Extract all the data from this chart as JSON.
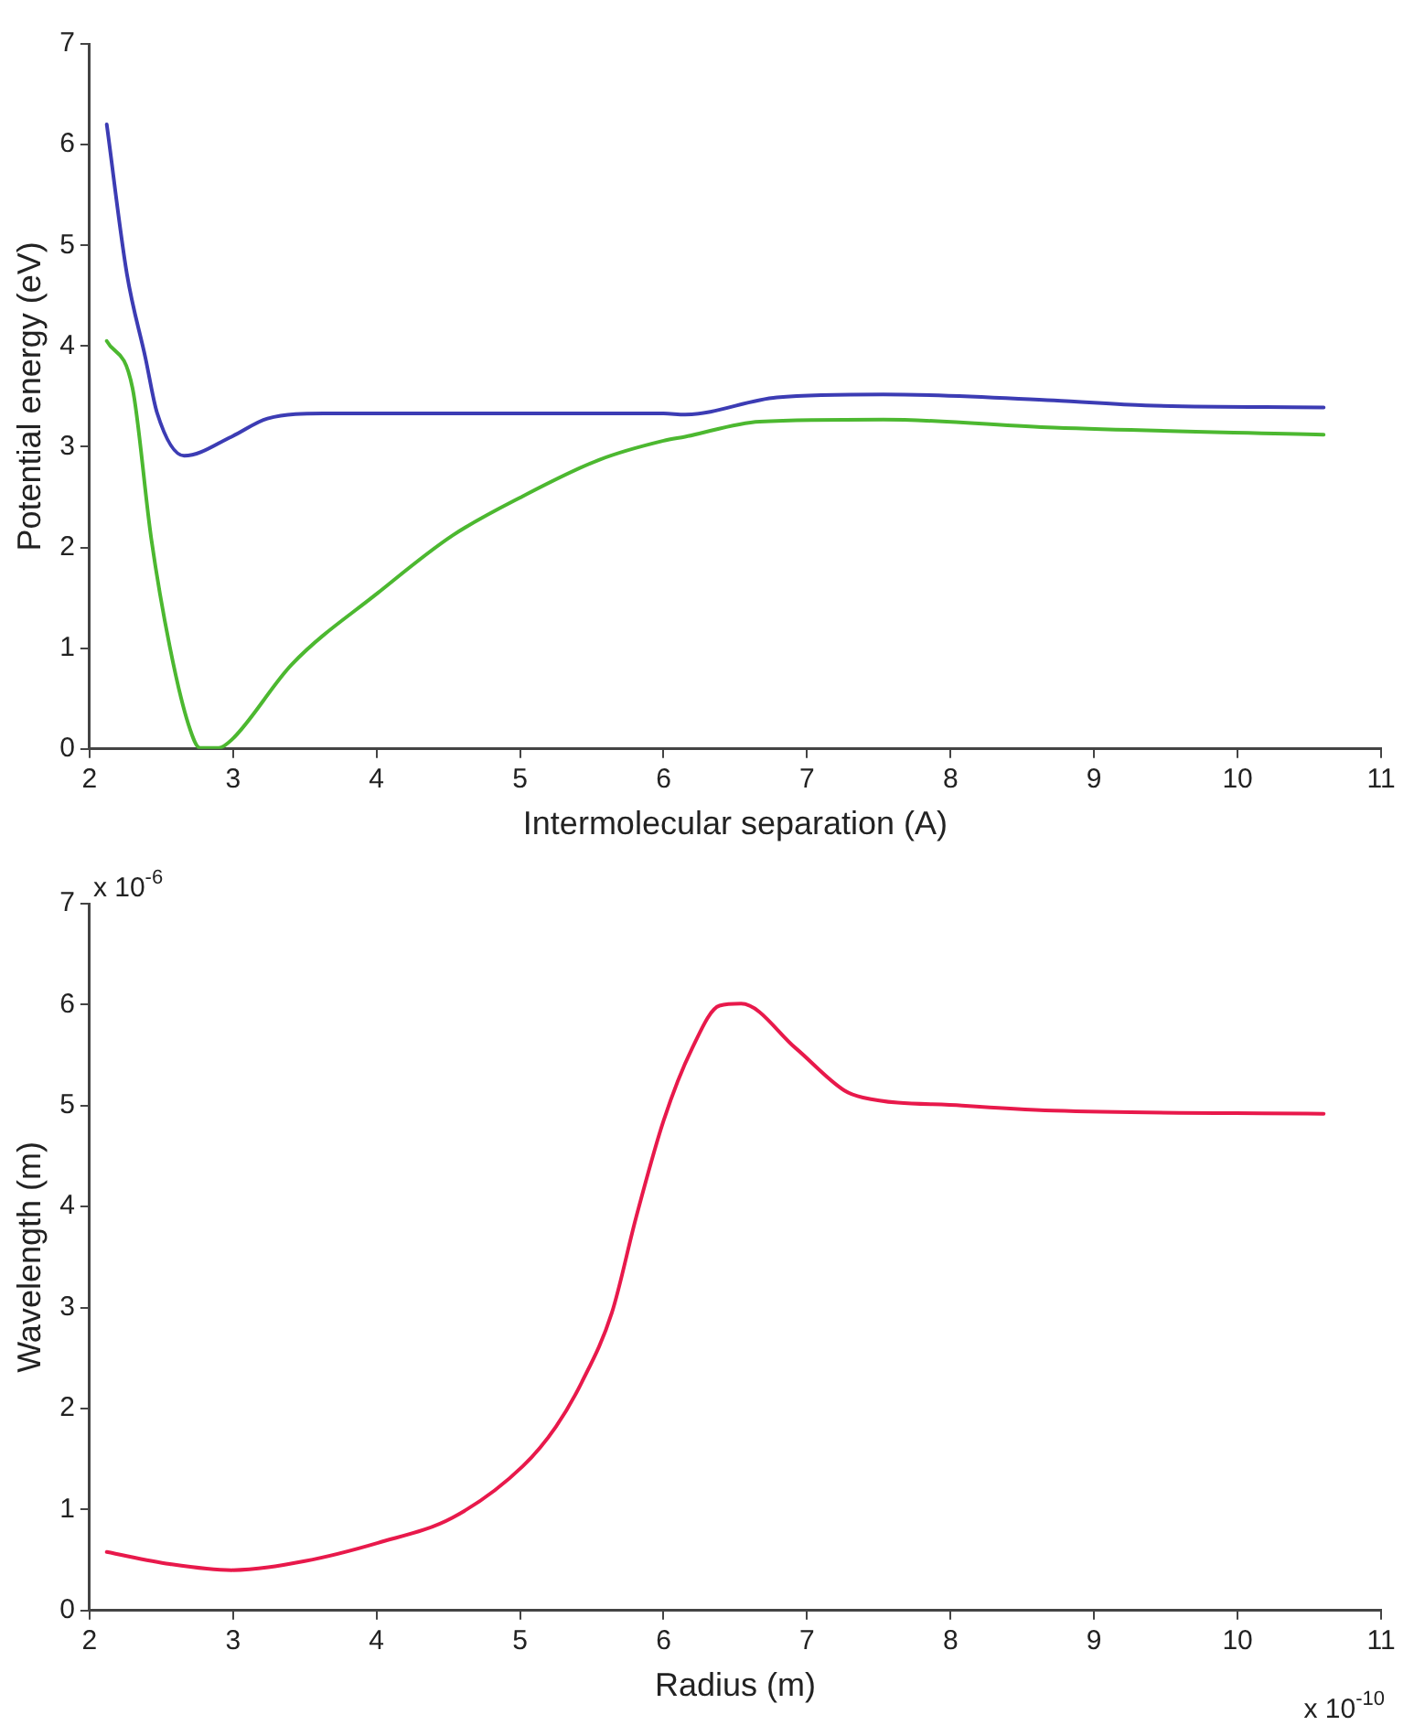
{
  "chart_data": [
    {
      "type": "line",
      "xlabel": "Intermolecular separation (A)",
      "ylabel": "Potential energy (eV)",
      "xlim": [
        2,
        11
      ],
      "xticks": [
        2,
        3,
        4,
        5,
        6,
        7,
        8,
        9,
        10,
        11
      ],
      "ylim": [
        0,
        7
      ],
      "yticks": [
        0,
        1,
        2,
        3,
        4,
        5,
        6,
        7
      ],
      "grid": false,
      "legend": false,
      "marker": "none",
      "line_style": "solid",
      "series": [
        {
          "color": "#3c3cb4",
          "x": [
            2.12,
            2.26,
            2.39,
            2.47,
            2.66,
            2.99,
            3.24,
            3.63,
            4.5,
            5.5,
            6.0,
            6.15,
            6.79,
            7.53,
            8.72,
            9.36,
            10.6
          ],
          "values": [
            6.2,
            4.72,
            3.88,
            3.34,
            2.91,
            3.1,
            3.28,
            3.33,
            3.33,
            3.33,
            3.33,
            3.32,
            3.49,
            3.52,
            3.46,
            3.41,
            3.39
          ]
        },
        {
          "color": "#4cb830",
          "x": [
            2.12,
            2.3,
            2.43,
            2.56,
            2.69,
            2.77,
            2.9,
            2.99,
            3.41,
            4.01,
            4.53,
            5.02,
            5.55,
            6.0,
            6.15,
            6.67,
            7.53,
            8.72,
            10.6
          ],
          "values": [
            4.05,
            3.58,
            2.09,
            1.01,
            0.24,
            0.01,
            0.01,
            0.09,
            0.84,
            1.55,
            2.12,
            2.51,
            2.87,
            3.06,
            3.1,
            3.25,
            3.27,
            3.19,
            3.12
          ]
        }
      ]
    },
    {
      "type": "line",
      "xlabel": "Radius (m)",
      "ylabel": "Wavelength (m)",
      "xlim": [
        2,
        11
      ],
      "xticks": [
        2,
        3,
        4,
        5,
        6,
        7,
        8,
        9,
        10,
        11
      ],
      "ylim": [
        0,
        7
      ],
      "yticks": [
        0,
        1,
        2,
        3,
        4,
        5,
        6,
        7
      ],
      "grid": false,
      "legend": false,
      "marker": "none",
      "line_style": "solid",
      "annotations": [
        "x 10$^{-6}$",
        "x 10$^{-10}$"
      ],
      "series": [
        {
          "color": "#e8194b",
          "x": [
            2.12,
            2.56,
            2.99,
            3.5,
            4.01,
            4.53,
            5.02,
            5.25,
            5.43,
            5.64,
            5.81,
            6.0,
            6.2,
            6.39,
            6.54,
            6.92,
            7.26,
            7.39,
            8.08,
            8.72,
            10.6
          ],
          "values": [
            0.58,
            0.46,
            0.4,
            0.49,
            0.67,
            0.92,
            1.43,
            1.82,
            2.26,
            2.95,
            3.9,
            4.85,
            5.57,
            5.99,
            6.01,
            5.57,
            5.15,
            5.08,
            5.0,
            4.95,
            4.92
          ]
        }
      ]
    }
  ]
}
